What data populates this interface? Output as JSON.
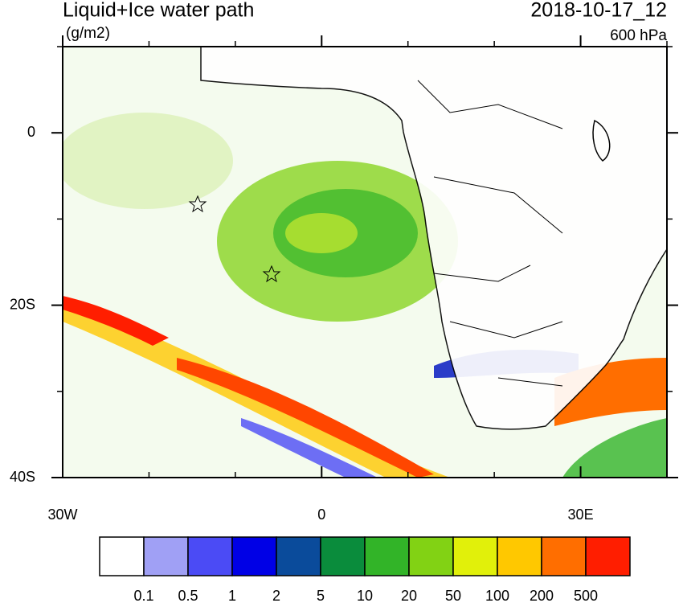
{
  "map": {
    "title": "Liquid+Ice water path",
    "units": "(g/m2)",
    "time": "2018-10-17_12",
    "level": "600 hPa",
    "xlim": [
      -30,
      40
    ],
    "ylim": [
      -40,
      10
    ],
    "xticks": [
      {
        "value": -30,
        "label": "30W"
      },
      0,
      {
        "value": 30,
        "label": "30E"
      }
    ],
    "yticks": [
      {
        "value": 0,
        "label": "0"
      },
      {
        "value": -20,
        "label": "20S"
      },
      {
        "value": -40,
        "label": "40S"
      }
    ],
    "minor_xticks": [
      -20,
      -10,
      10,
      20,
      40
    ],
    "minor_yticks": [
      -30,
      -10,
      10
    ]
  },
  "colorbar": {
    "colors": [
      "#ffffff",
      "#a0a0f5",
      "#4b4bf5",
      "#0000e6",
      "#0a4b9b",
      "#0a8c3c",
      "#32b428",
      "#82d214",
      "#e1f00a",
      "#ffc800",
      "#ff6e00",
      "#ff1e00"
    ],
    "labels": [
      0.1,
      0.5,
      1,
      2,
      5,
      10,
      20,
      50,
      100,
      200,
      500
    ]
  }
}
